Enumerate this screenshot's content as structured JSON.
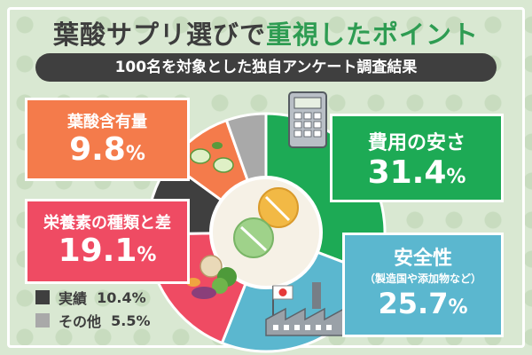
{
  "title": {
    "prefix": "葉酸サプリ選びで",
    "highlight": "重視したポイント"
  },
  "subtitle": "100名を対象とした独自アンケート調査結果",
  "labels": {
    "cost": "費用の安さ",
    "safety": "安全性",
    "safety_sub": "（製造国や添加物など）",
    "variety": "栄養素の種類と差",
    "folate": "葉酸含有量",
    "record": "実績",
    "other": "その他",
    "percent_unit": "%"
  },
  "values_text": {
    "cost": "31.4",
    "safety": "25.7",
    "variety": "19.1",
    "folate": "9.8",
    "record": "10.4%",
    "other": "5.5%"
  },
  "colors": {
    "cost": "#1daa55",
    "safety": "#5bb7cf",
    "variety": "#ef4b63",
    "record": "#3f3f3f",
    "folate": "#f47b4b",
    "other": "#a9a9a9",
    "center": "#f6f1e6"
  },
  "icons": [
    "calculator-icon",
    "factory-icon",
    "japan-flag-icon",
    "vegetables-icon",
    "leaf-capsule-icon",
    "pill-icon"
  ],
  "chart_data": {
    "type": "pie",
    "variant": "donut",
    "categories": [
      "費用の安さ",
      "安全性",
      "栄養素の種類と差",
      "実績",
      "葉酸含有量",
      "その他"
    ],
    "values": [
      31.4,
      25.7,
      19.1,
      10.4,
      9.8,
      5.5
    ],
    "title": "葉酸サプリ選びで重視したポイント",
    "subtitle": "100名を対象とした独自アンケート調査結果",
    "legend": "bottom-left"
  }
}
